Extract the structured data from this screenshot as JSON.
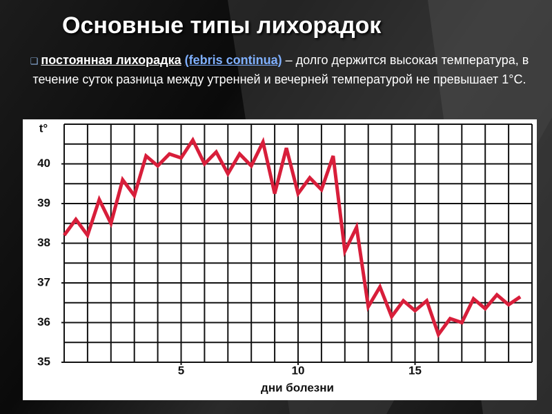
{
  "title": "Основные типы лихорадок",
  "paragraph": {
    "term": "постоянная лихорадка",
    "latin": "(febris continua)",
    "text": "– долго держится высокая температура, в течение суток разница между утренней и вечерней температурой не превышает 1°С."
  },
  "chart_data": {
    "type": "line",
    "xlabel": "дни болезни",
    "ylabel": "t°",
    "x": [
      0,
      0.5,
      1,
      1.5,
      2,
      2.5,
      3,
      3.5,
      4,
      4.5,
      5,
      5.5,
      6,
      6.5,
      7,
      7.5,
      8,
      8.5,
      9,
      9.5,
      10,
      10.5,
      11,
      11.5,
      12,
      12.5,
      13,
      13.5,
      14,
      14.5,
      15,
      15.5,
      16,
      16.5,
      17,
      17.5,
      18,
      18.5,
      19,
      19.5
    ],
    "series": [
      {
        "color": "#d81e3a",
        "values": [
          38.2,
          38.6,
          38.2,
          39.1,
          38.5,
          39.6,
          39.2,
          40.2,
          39.95,
          40.25,
          40.15,
          40.6,
          40.0,
          40.3,
          39.75,
          40.25,
          39.95,
          40.55,
          39.25,
          40.4,
          39.25,
          39.65,
          39.35,
          40.2,
          37.8,
          38.4,
          36.4,
          36.9,
          36.15,
          36.55,
          36.3,
          36.55,
          35.7,
          36.1,
          36.0,
          36.6,
          36.35,
          36.7,
          36.45,
          36.65
        ]
      }
    ],
    "xlim": [
      0,
      20
    ],
    "ylim": [
      35,
      41
    ],
    "xticks": [
      5,
      10,
      15
    ],
    "yticks": [
      35,
      36,
      37,
      38,
      39,
      40
    ],
    "grid": true
  }
}
